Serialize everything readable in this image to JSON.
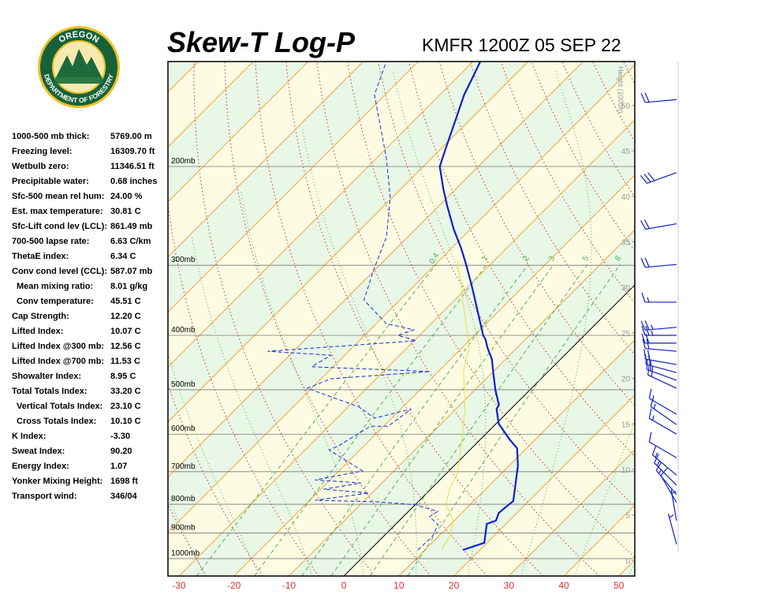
{
  "logo": {
    "top": "OREGON",
    "bottom": "DEPARTMENT OF FORESTRY"
  },
  "stats": [
    {
      "label": "1000-500 mb thick:",
      "value": "5769.00 m"
    },
    {
      "label": "Freezing level:",
      "value": "16309.70 ft"
    },
    {
      "label": "Wetbulb zero:",
      "value": "11346.51 ft"
    },
    {
      "label": "Precipitable water:",
      "value": "0.68 inches"
    },
    {
      "label": "Sfc-500 mean rel hum:",
      "value": "24.00 %"
    },
    {
      "label": "Est. max temperature:",
      "value": "30.81 C"
    },
    {
      "label": "Sfc-Lift cond lev (LCL):",
      "value": "861.49 mb"
    },
    {
      "label": "700-500 lapse rate:",
      "value": "6.63 C/km"
    },
    {
      "label": "ThetaE index:",
      "value": "6.34 C"
    },
    {
      "label": "Conv cond level (CCL):",
      "value": "587.07 mb"
    },
    {
      "label": "Mean mixing ratio:",
      "value": "8.01 g/kg"
    },
    {
      "label": "Conv temperature:",
      "value": "45.51 C"
    },
    {
      "label": "Cap Strength:",
      "value": "12.20 C"
    },
    {
      "label": "Lifted Index:",
      "value": "10.07 C"
    },
    {
      "label": "Lifted Index @300 mb:",
      "value": "12.56 C"
    },
    {
      "label": "Lifted Index @700 mb:",
      "value": "11.53 C"
    },
    {
      "label": "Showalter Index:",
      "value": "8.95 C"
    },
    {
      "label": "Total Totals Index:",
      "value": "33.20 C"
    },
    {
      "label": "Vertical Totals Index:",
      "value": "23.10 C"
    },
    {
      "label": "Cross Totals Index:",
      "value": "10.10 C"
    },
    {
      "label": "K Index:",
      "value": "-3.30"
    },
    {
      "label": "Sweat Index:",
      "value": "90.20"
    },
    {
      "label": "Energy Index:",
      "value": "1.07"
    },
    {
      "label": "Yonker Mixing Height:",
      "value": "1698 ft"
    },
    {
      "label": "Transport wind:",
      "value": "346/04"
    }
  ],
  "chart_data": {
    "type": "skewt",
    "title": "Skew-T Log-P",
    "subtitle": "KMFR 1200Z 05 SEP 22",
    "y2_label": "Height (1000ft)",
    "xlim": [
      -32,
      52.9
    ],
    "xticks": [
      -30,
      -20,
      -10,
      0,
      10,
      20,
      30,
      40,
      50
    ],
    "ylim": [
      1074,
      130
    ],
    "log_y": true,
    "yticks": [
      {
        "value": 200,
        "label": "200mb"
      },
      {
        "value": 300,
        "label": "300mb"
      },
      {
        "value": 400,
        "label": "400mb"
      },
      {
        "value": 500,
        "label": "500mb"
      },
      {
        "value": 600,
        "label": "600mb"
      },
      {
        "value": 700,
        "label": "700mb"
      },
      {
        "value": 800,
        "label": "800mb"
      },
      {
        "value": 900,
        "label": "900mb"
      },
      {
        "value": 1000,
        "label": "1000mb"
      }
    ],
    "y2lim": [
      -1.7,
      54.8
    ],
    "y2ticks": [
      0,
      5,
      10,
      15,
      20,
      25,
      30,
      35,
      40,
      45,
      50
    ],
    "mixing_ratio_labels": [
      0.4,
      1,
      2,
      3,
      5,
      8
    ],
    "band_colors": [
      "#e9f7e6",
      "#fdfce3"
    ],
    "isotherm_color": "#f0a040",
    "dry_adiabat_color": "#d03030",
    "moist_adiabat_color": "#40b040",
    "mixing_ratio_color": "#50b050",
    "series": [
      {
        "color": "#0a1fd0",
        "dashed": false,
        "pressure": [
          965,
          937,
          867,
          856,
          829,
          802,
          790,
          752,
          683,
          636,
          613,
          575,
          541,
          532,
          502,
          470,
          441,
          420,
          407,
          400,
          369,
          346,
          324,
          299,
          280,
          259,
          235,
          220,
          200,
          187,
          164,
          149,
          140,
          130
        ],
        "values": [
          16.9,
          19.5,
          16.5,
          17.6,
          16.7,
          17.0,
          17.2,
          15.3,
          11.6,
          8.3,
          5.3,
          0.5,
          -2.6,
          -2.9,
          -6.1,
          -9.4,
          -12.5,
          -15.5,
          -17.2,
          -18.4,
          -22.8,
          -26.3,
          -29.9,
          -34.4,
          -38.2,
          -43.0,
          -48.5,
          -52.1,
          -57.0,
          -59.0,
          -62.8,
          -65.6,
          -67.0,
          -68.7
        ]
      },
      {
        "color": "#1030d0",
        "dashed": true,
        "pressure": [
          965,
          913,
          870,
          842,
          824,
          802,
          792,
          787,
          764,
          752,
          733,
          724,
          698,
          640,
          629,
          581,
          581,
          541,
          562,
          536,
          497,
          478,
          464,
          455,
          434,
          427,
          409,
          400,
          391,
          381,
          346,
          304,
          267,
          227,
          193,
          149,
          130
        ],
        "values": [
          8.7,
          8.9,
          7.8,
          4.8,
          5.3,
          0.1,
          -7.2,
          -19.0,
          -10.5,
          -19.5,
          -13.8,
          -22.7,
          -15.7,
          -25.6,
          -24.6,
          -22.4,
          -19.2,
          -18.1,
          -23.1,
          -28.1,
          -40.8,
          -38.2,
          -21.5,
          -43.9,
          -42.5,
          -54.7,
          -29.6,
          -33.9,
          -32.0,
          -38.2,
          -46.5,
          -50.4,
          -53.9,
          -60.4,
          -68.3,
          -81.9,
          -85.8
        ]
      },
      {
        "color": "#e8e040",
        "dashed": false,
        "pressure": [
          965,
          913,
          856,
          802,
          752,
          705,
          619,
          544,
          463,
          420,
          369,
          294
        ],
        "values": [
          13.0,
          12.0,
          9.9,
          5.6,
          3.4,
          2.0,
          -3.0,
          -8.1,
          -15.5,
          -18.8,
          -25.3,
          -36.7
        ]
      }
    ],
    "winds": {
      "pressure": [
        152,
        205,
        253,
        299,
        349,
        387,
        400,
        413,
        427,
        451,
        466,
        481,
        497,
        553,
        577,
        600,
        661,
        710,
        740,
        769,
        795,
        856,
        943
      ],
      "direction": [
        265,
        250,
        260,
        265,
        270,
        265,
        270,
        270,
        275,
        280,
        285,
        290,
        295,
        300,
        305,
        300,
        300,
        310,
        315,
        320,
        330,
        350,
        345
      ],
      "speed": [
        20,
        30,
        20,
        20,
        15,
        25,
        25,
        20,
        20,
        20,
        20,
        20,
        20,
        15,
        15,
        15,
        10,
        15,
        15,
        15,
        10,
        5,
        5
      ],
      "color": "#1020c0"
    }
  }
}
